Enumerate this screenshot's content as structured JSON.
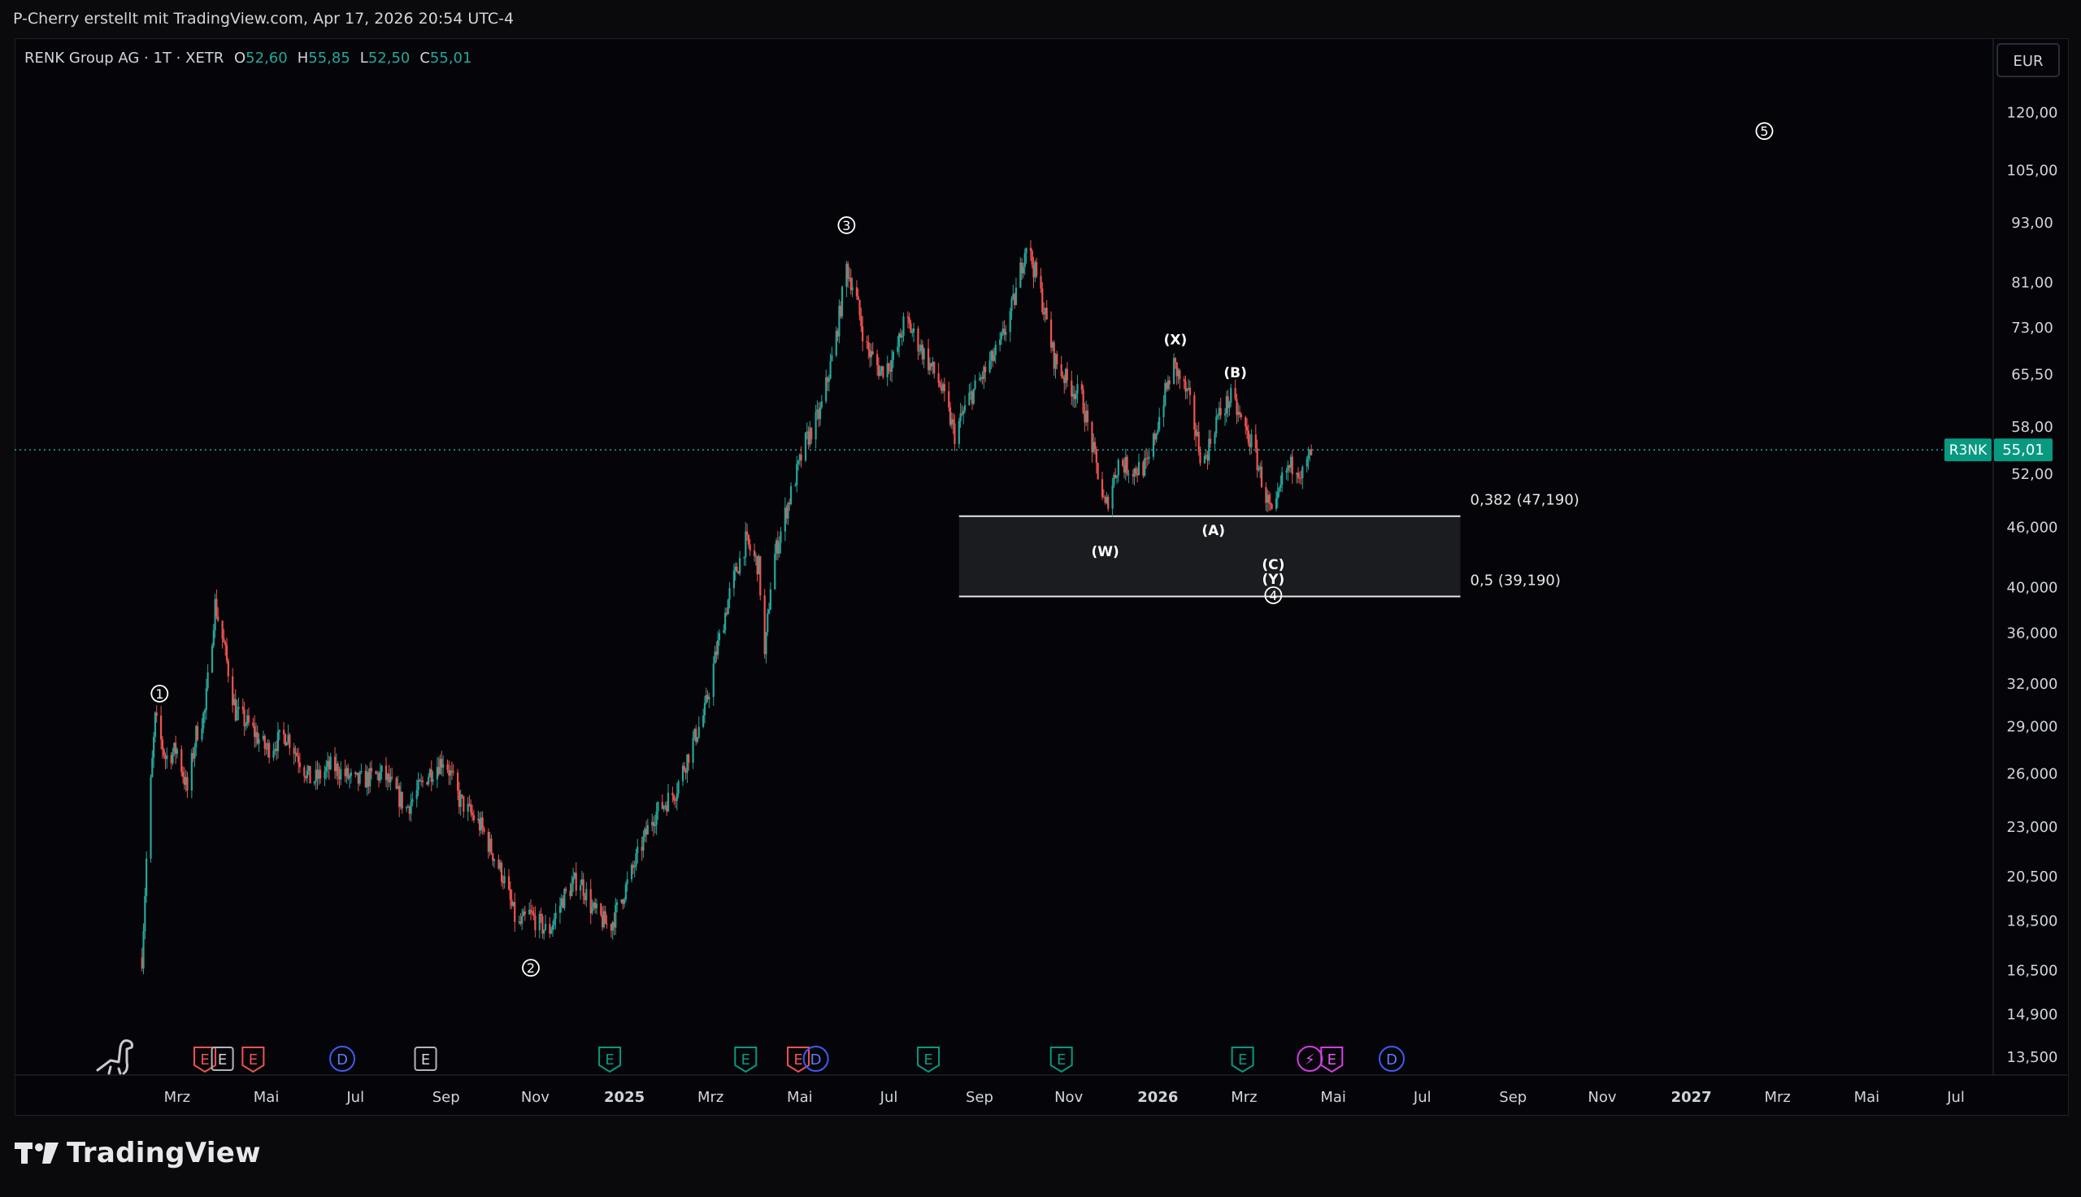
{
  "attribution": "P-Cherry erstellt mit TradingView.com, Apr 17, 2026 20:54 UTC-4",
  "brand": "TradingView",
  "legend": {
    "symbol": "RENK Group AG · 1T · XETR",
    "o_label": "O",
    "o_value": "52,60",
    "h_label": "H",
    "h_value": "55,85",
    "l_label": "L",
    "l_value": "52,50",
    "c_label": "C",
    "c_value": "55,01"
  },
  "colors": {
    "background": "#050509",
    "up": "#26a69a",
    "down": "#ef5350",
    "last_price_label": "#089981",
    "fib_line": "#e6e6e6",
    "fib_box": "#1c1d22",
    "text": "#d1d4dc"
  },
  "chart_data": {
    "type": "candlestick",
    "currency": "EUR",
    "price_scale": "log",
    "ylim": [
      13.2,
      130
    ],
    "y_ticks": [
      "120,00",
      "105,00",
      "93,00",
      "81,00",
      "73,00",
      "65,50",
      "58,00",
      "52,00",
      "46,000",
      "40,000",
      "36,000",
      "32,000",
      "29,000",
      "26,000",
      "23,000",
      "20,500",
      "18,500",
      "16,500",
      "14,900",
      "13,500"
    ],
    "y_tick_values": [
      120,
      105,
      93,
      81,
      73,
      65.5,
      58,
      52,
      46,
      40,
      36,
      32,
      29,
      26,
      23,
      20.5,
      18.5,
      16.5,
      14.9,
      13.5
    ],
    "x_range": [
      "2024-01-01",
      "2027-07-31"
    ],
    "x_ticks": [
      {
        "label": "Mrz",
        "date": "2024-03-01",
        "bold": false
      },
      {
        "label": "Mai",
        "date": "2024-05-01",
        "bold": false
      },
      {
        "label": "Jul",
        "date": "2024-07-01",
        "bold": false
      },
      {
        "label": "Sep",
        "date": "2024-09-01",
        "bold": false
      },
      {
        "label": "Nov",
        "date": "2024-11-01",
        "bold": false
      },
      {
        "label": "2025",
        "date": "2025-01-01",
        "bold": true
      },
      {
        "label": "Mrz",
        "date": "2025-03-01",
        "bold": false
      },
      {
        "label": "Mai",
        "date": "2025-05-01",
        "bold": false
      },
      {
        "label": "Jul",
        "date": "2025-07-01",
        "bold": false
      },
      {
        "label": "Sep",
        "date": "2025-09-01",
        "bold": false
      },
      {
        "label": "Nov",
        "date": "2025-11-01",
        "bold": false
      },
      {
        "label": "2026",
        "date": "2026-01-01",
        "bold": true
      },
      {
        "label": "Mrz",
        "date": "2026-03-01",
        "bold": false
      },
      {
        "label": "Mai",
        "date": "2026-05-01",
        "bold": false
      },
      {
        "label": "Jul",
        "date": "2026-07-01",
        "bold": false
      },
      {
        "label": "Sep",
        "date": "2026-09-01",
        "bold": false
      },
      {
        "label": "Nov",
        "date": "2026-11-01",
        "bold": false
      },
      {
        "label": "2027",
        "date": "2027-01-01",
        "bold": true
      },
      {
        "label": "Mrz",
        "date": "2027-03-01",
        "bold": false
      },
      {
        "label": "Mai",
        "date": "2027-05-01",
        "bold": false
      },
      {
        "label": "Jul",
        "date": "2027-07-01",
        "bold": false
      }
    ],
    "price_path": [
      [
        "2024-02-06",
        17.0
      ],
      [
        "2024-02-10",
        23.0
      ],
      [
        "2024-02-15",
        29.5
      ],
      [
        "2024-02-22",
        27.0
      ],
      [
        "2024-03-01",
        27.5
      ],
      [
        "2024-03-08",
        25.0
      ],
      [
        "2024-03-14",
        28.5
      ],
      [
        "2024-03-20",
        30.0
      ],
      [
        "2024-03-27",
        38.5
      ],
      [
        "2024-04-02",
        35.0
      ],
      [
        "2024-04-10",
        30.0
      ],
      [
        "2024-04-20",
        29.0
      ],
      [
        "2024-05-01",
        27.5
      ],
      [
        "2024-05-15",
        28.5
      ],
      [
        "2024-06-01",
        25.5
      ],
      [
        "2024-06-15",
        26.5
      ],
      [
        "2024-07-01",
        25.5
      ],
      [
        "2024-07-20",
        26.0
      ],
      [
        "2024-08-05",
        24.0
      ],
      [
        "2024-08-20",
        26.0
      ],
      [
        "2024-08-31",
        27.0
      ],
      [
        "2024-09-10",
        24.5
      ],
      [
        "2024-09-25",
        23.0
      ],
      [
        "2024-10-10",
        20.5
      ],
      [
        "2024-10-20",
        18.2
      ],
      [
        "2024-10-28",
        18.8
      ],
      [
        "2024-11-10",
        18.0
      ],
      [
        "2024-11-20",
        19.5
      ],
      [
        "2024-12-01",
        20.5
      ],
      [
        "2024-12-10",
        19.0
      ],
      [
        "2024-12-22",
        18.2
      ],
      [
        "2025-01-05",
        20.5
      ],
      [
        "2025-01-20",
        23.5
      ],
      [
        "2025-02-05",
        25.0
      ],
      [
        "2025-02-15",
        27.5
      ],
      [
        "2025-02-25",
        30.0
      ],
      [
        "2025-03-05",
        34.5
      ],
      [
        "2025-03-15",
        40.0
      ],
      [
        "2025-03-25",
        44.5
      ],
      [
        "2025-04-03",
        42.0
      ],
      [
        "2025-04-07",
        34.0
      ],
      [
        "2025-04-12",
        42.0
      ],
      [
        "2025-04-22",
        48.0
      ],
      [
        "2025-05-05",
        56.0
      ],
      [
        "2025-05-15",
        60.0
      ],
      [
        "2025-05-25",
        70.0
      ],
      [
        "2025-06-02",
        84.0
      ],
      [
        "2025-06-08",
        79.0
      ],
      [
        "2025-06-15",
        70.0
      ],
      [
        "2025-06-25",
        66.0
      ],
      [
        "2025-07-05",
        68.0
      ],
      [
        "2025-07-12",
        74.5
      ],
      [
        "2025-07-22",
        70.0
      ],
      [
        "2025-08-05",
        64.0
      ],
      [
        "2025-08-15",
        57.0
      ],
      [
        "2025-08-25",
        62.0
      ],
      [
        "2025-09-05",
        66.0
      ],
      [
        "2025-09-15",
        70.0
      ],
      [
        "2025-09-25",
        78.0
      ],
      [
        "2025-10-03",
        89.0
      ],
      [
        "2025-10-12",
        80.0
      ],
      [
        "2025-10-22",
        68.0
      ],
      [
        "2025-11-01",
        64.0
      ],
      [
        "2025-11-10",
        62.0
      ],
      [
        "2025-11-20",
        53.0
      ],
      [
        "2025-11-26",
        48.0
      ],
      [
        "2025-12-05",
        53.5
      ],
      [
        "2025-12-15",
        52.5
      ],
      [
        "2025-12-25",
        53.0
      ],
      [
        "2026-01-05",
        62.0
      ],
      [
        "2026-01-12",
        67.0
      ],
      [
        "2026-01-22",
        62.0
      ],
      [
        "2026-02-01",
        53.0
      ],
      [
        "2026-02-10",
        59.0
      ],
      [
        "2026-02-20",
        62.0
      ],
      [
        "2026-03-01",
        58.0
      ],
      [
        "2026-03-08",
        55.0
      ],
      [
        "2026-03-15",
        50.0
      ],
      [
        "2026-03-21",
        46.5
      ],
      [
        "2026-03-28",
        52.0
      ],
      [
        "2026-04-05",
        53.5
      ],
      [
        "2026-04-10",
        52.0
      ],
      [
        "2026-04-17",
        55.01
      ]
    ],
    "last_price": {
      "symbol": "R3NK",
      "value": "55,01",
      "price": 55.01
    },
    "fib_levels": [
      {
        "label": "0,382 (47,190)",
        "value": 47.19
      },
      {
        "label": "0,5 (39,190)",
        "value": 39.19
      }
    ],
    "fib_range": {
      "start": "2025-08-18",
      "end": "2026-07-27"
    },
    "wave_labels": [
      {
        "text": "1",
        "circled": true,
        "date": "2024-02-18",
        "price": 31.3
      },
      {
        "text": "2",
        "circled": true,
        "date": "2024-10-29",
        "price": 16.6
      },
      {
        "text": "3",
        "circled": true,
        "date": "2025-06-02",
        "price": 92.5
      },
      {
        "text": "(X)",
        "circled": false,
        "date": "2026-01-13",
        "price": 71.0
      },
      {
        "text": "(B)",
        "circled": false,
        "date": "2026-02-23",
        "price": 65.8
      },
      {
        "text": "(W)",
        "circled": false,
        "date": "2025-11-26",
        "price": 43.5
      },
      {
        "text": "(A)",
        "circled": false,
        "date": "2026-02-08",
        "price": 45.7
      },
      {
        "text": "(C)",
        "circled": false,
        "date": "2026-03-21",
        "price": 42.2
      },
      {
        "text": "(Y)",
        "circled": false,
        "date": "2026-03-21",
        "price": 40.8
      },
      {
        "text": "4",
        "circled": true,
        "date": "2026-03-21",
        "price": 39.3
      },
      {
        "text": "5",
        "circled": true,
        "date": "2027-02-20",
        "price": 115.0
      }
    ],
    "event_markers": [
      {
        "type": "E",
        "style": "red",
        "date": "2024-03-20"
      },
      {
        "type": "E",
        "style": "grey",
        "date": "2024-04-01"
      },
      {
        "type": "E",
        "style": "red",
        "date": "2024-04-22"
      },
      {
        "type": "D",
        "style": "blue",
        "date": "2024-06-22"
      },
      {
        "type": "E",
        "style": "grey",
        "date": "2024-08-18"
      },
      {
        "type": "E",
        "style": "green",
        "date": "2024-12-22"
      },
      {
        "type": "E",
        "style": "green",
        "date": "2025-03-25"
      },
      {
        "type": "E",
        "style": "red",
        "date": "2025-04-30"
      },
      {
        "type": "D",
        "style": "blue",
        "date": "2025-05-12"
      },
      {
        "type": "E",
        "style": "green",
        "date": "2025-07-28"
      },
      {
        "type": "E",
        "style": "green",
        "date": "2025-10-27"
      },
      {
        "type": "E",
        "style": "green",
        "date": "2026-02-28"
      },
      {
        "type": "⚡",
        "style": "purple",
        "date": "2026-04-15"
      },
      {
        "type": "E",
        "style": "purple",
        "date": "2026-04-30"
      },
      {
        "type": "D",
        "style": "blue",
        "date": "2026-06-10"
      }
    ]
  }
}
